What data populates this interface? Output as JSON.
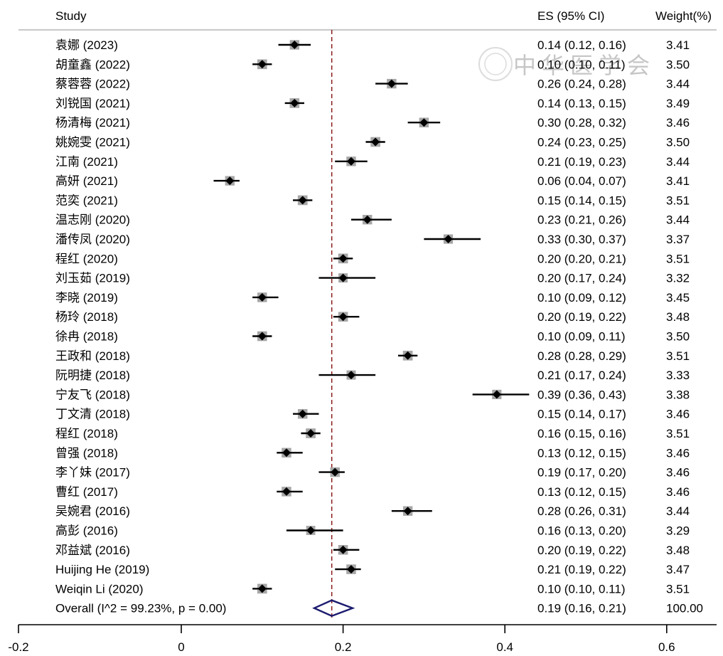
{
  "chart_data": {
    "type": "forest",
    "headers": {
      "study": "Study",
      "es": "ES (95% CI)",
      "weight": "Weight(%)"
    },
    "x_ticks": [
      -0.2,
      0,
      0.2,
      0.4,
      0.6
    ],
    "x_tick_labels": [
      "-0.2",
      "0",
      "0.2",
      "0.4",
      "0.6"
    ],
    "xlim": [
      -0.2,
      0.665
    ],
    "reference_line": 0.186,
    "studies": [
      {
        "label": "袁娜 (2023)",
        "es": 0.14,
        "lo": 0.12,
        "hi": 0.16,
        "weight": 3.41,
        "es_text": "0.14 (0.12, 0.16)",
        "weight_text": "3.41"
      },
      {
        "label": "胡童鑫 (2022)",
        "es": 0.1,
        "lo": 0.1,
        "hi": 0.11,
        "weight": 3.5,
        "es_text": "0.10 (0.10, 0.11)",
        "weight_text": "3.50"
      },
      {
        "label": "蔡蓉蓉 (2022)",
        "es": 0.26,
        "lo": 0.24,
        "hi": 0.28,
        "weight": 3.44,
        "es_text": "0.26 (0.24, 0.28)",
        "weight_text": "3.44"
      },
      {
        "label": "刘锐国 (2021)",
        "es": 0.14,
        "lo": 0.13,
        "hi": 0.15,
        "weight": 3.49,
        "es_text": "0.14 (0.13, 0.15)",
        "weight_text": "3.49"
      },
      {
        "label": "杨清梅 (2021)",
        "es": 0.3,
        "lo": 0.28,
        "hi": 0.32,
        "weight": 3.46,
        "es_text": "0.30 (0.28, 0.32)",
        "weight_text": "3.46"
      },
      {
        "label": "姚婉雯 (2021)",
        "es": 0.24,
        "lo": 0.23,
        "hi": 0.25,
        "weight": 3.5,
        "es_text": "0.24 (0.23, 0.25)",
        "weight_text": "3.50"
      },
      {
        "label": "江南 (2021)",
        "es": 0.21,
        "lo": 0.19,
        "hi": 0.23,
        "weight": 3.44,
        "es_text": "0.21 (0.19, 0.23)",
        "weight_text": "3.44"
      },
      {
        "label": "高妍 (2021)",
        "es": 0.06,
        "lo": 0.04,
        "hi": 0.07,
        "weight": 3.41,
        "es_text": "0.06 (0.04, 0.07)",
        "weight_text": "3.41"
      },
      {
        "label": "范奕 (2021)",
        "es": 0.15,
        "lo": 0.14,
        "hi": 0.15,
        "weight": 3.51,
        "es_text": "0.15 (0.14, 0.15)",
        "weight_text": "3.51"
      },
      {
        "label": "温志刚 (2020)",
        "es": 0.23,
        "lo": 0.21,
        "hi": 0.26,
        "weight": 3.44,
        "es_text": "0.23 (0.21, 0.26)",
        "weight_text": "3.44"
      },
      {
        "label": "潘传凤 (2020)",
        "es": 0.33,
        "lo": 0.3,
        "hi": 0.37,
        "weight": 3.37,
        "es_text": "0.33 (0.30, 0.37)",
        "weight_text": "3.37"
      },
      {
        "label": "程红 (2020)",
        "es": 0.2,
        "lo": 0.2,
        "hi": 0.21,
        "weight": 3.51,
        "es_text": "0.20 (0.20, 0.21)",
        "weight_text": "3.51"
      },
      {
        "label": "刘玉茹 (2019)",
        "es": 0.2,
        "lo": 0.17,
        "hi": 0.24,
        "weight": 3.32,
        "es_text": "0.20 (0.17, 0.24)",
        "weight_text": "3.32"
      },
      {
        "label": "李晓 (2019)",
        "es": 0.1,
        "lo": 0.09,
        "hi": 0.12,
        "weight": 3.45,
        "es_text": "0.10 (0.09, 0.12)",
        "weight_text": "3.45"
      },
      {
        "label": "杨玲 (2018)",
        "es": 0.2,
        "lo": 0.19,
        "hi": 0.22,
        "weight": 3.48,
        "es_text": "0.20 (0.19, 0.22)",
        "weight_text": "3.48"
      },
      {
        "label": "徐冉 (2018)",
        "es": 0.1,
        "lo": 0.09,
        "hi": 0.11,
        "weight": 3.5,
        "es_text": "0.10 (0.09, 0.11)",
        "weight_text": "3.50"
      },
      {
        "label": "王政和 (2018)",
        "es": 0.28,
        "lo": 0.28,
        "hi": 0.29,
        "weight": 3.51,
        "es_text": "0.28 (0.28, 0.29)",
        "weight_text": "3.51"
      },
      {
        "label": "阮明捷 (2018)",
        "es": 0.21,
        "lo": 0.17,
        "hi": 0.24,
        "weight": 3.33,
        "es_text": "0.21 (0.17, 0.24)",
        "weight_text": "3.33"
      },
      {
        "label": "宁友飞 (2018)",
        "es": 0.39,
        "lo": 0.36,
        "hi": 0.43,
        "weight": 3.38,
        "es_text": "0.39 (0.36, 0.43)",
        "weight_text": "3.38"
      },
      {
        "label": "丁文清 (2018)",
        "es": 0.15,
        "lo": 0.14,
        "hi": 0.17,
        "weight": 3.46,
        "es_text": "0.15 (0.14, 0.17)",
        "weight_text": "3.46"
      },
      {
        "label": "程红 (2018)",
        "es": 0.16,
        "lo": 0.15,
        "hi": 0.16,
        "weight": 3.51,
        "es_text": "0.16 (0.15, 0.16)",
        "weight_text": "3.51"
      },
      {
        "label": "曾强 (2018)",
        "es": 0.13,
        "lo": 0.12,
        "hi": 0.15,
        "weight": 3.46,
        "es_text": "0.13 (0.12, 0.15)",
        "weight_text": "3.46"
      },
      {
        "label": "李丫妹 (2017)",
        "es": 0.19,
        "lo": 0.17,
        "hi": 0.2,
        "weight": 3.46,
        "es_text": "0.19 (0.17, 0.20)",
        "weight_text": "3.46"
      },
      {
        "label": "曹红 (2017)",
        "es": 0.13,
        "lo": 0.12,
        "hi": 0.15,
        "weight": 3.46,
        "es_text": "0.13 (0.12, 0.15)",
        "weight_text": "3.46"
      },
      {
        "label": "吴婉君 (2016)",
        "es": 0.28,
        "lo": 0.26,
        "hi": 0.31,
        "weight": 3.44,
        "es_text": "0.28 (0.26, 0.31)",
        "weight_text": "3.44"
      },
      {
        "label": "高彭 (2016)",
        "es": 0.16,
        "lo": 0.13,
        "hi": 0.2,
        "weight": 3.29,
        "es_text": "0.16 (0.13, 0.20)",
        "weight_text": "3.29"
      },
      {
        "label": "邓益斌 (2016)",
        "es": 0.2,
        "lo": 0.19,
        "hi": 0.22,
        "weight": 3.48,
        "es_text": "0.20 (0.19, 0.22)",
        "weight_text": "3.48"
      },
      {
        "label": "Huijing He  (2019)",
        "es": 0.21,
        "lo": 0.19,
        "hi": 0.22,
        "weight": 3.47,
        "es_text": "0.21 (0.19, 0.22)",
        "weight_text": "3.47"
      },
      {
        "label": "Weiqin Li (2020)",
        "es": 0.1,
        "lo": 0.1,
        "hi": 0.11,
        "weight": 3.51,
        "es_text": "0.10 (0.10, 0.11)",
        "weight_text": "3.51"
      }
    ],
    "overall": {
      "label": "Overall  (I^2 = 99.23%, p = 0.00)",
      "es": 0.19,
      "lo": 0.16,
      "hi": 0.21,
      "es_text": "0.19 (0.16, 0.21)",
      "weight_text": "100.00"
    },
    "colors": {
      "ci_line": "#000000",
      "marker": "#000000",
      "weight_box": "#a6a6a6",
      "reference_line": "#8b1a1a",
      "overall_diamond": "#1a1a6e"
    }
  },
  "watermark": {
    "text": "中华医学会"
  }
}
